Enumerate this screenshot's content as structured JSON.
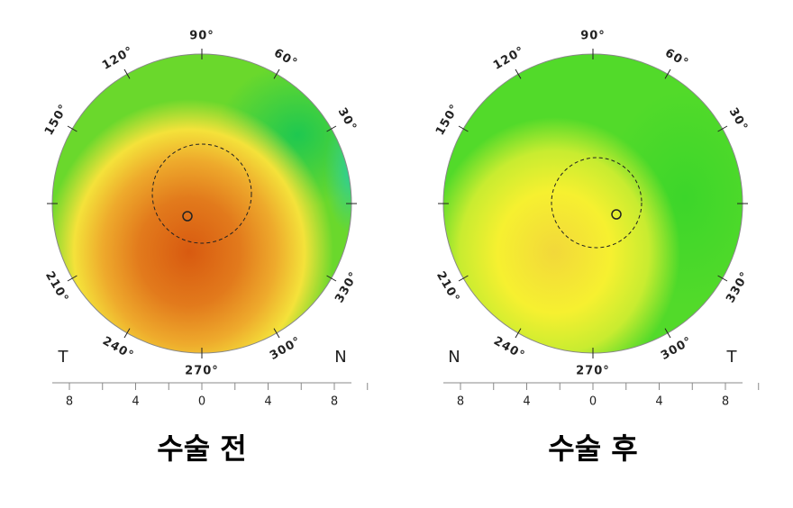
{
  "panels": [
    {
      "angle_labels": [
        "90°",
        "60°",
        "30°",
        "330°",
        "300°",
        "270°",
        "240°",
        "210°",
        "150°",
        "120°"
      ],
      "left_label": "T",
      "right_label": "N",
      "scale_labels": [
        "8",
        "4",
        "0",
        "4",
        "8"
      ],
      "caption": "수술 전"
    },
    {
      "angle_labels": [
        "90°",
        "60°",
        "30°",
        "330°",
        "300°",
        "270°",
        "240°",
        "210°",
        "150°",
        "120°"
      ],
      "left_label": "N",
      "right_label": "T",
      "scale_labels": [
        "8",
        "4",
        "0",
        "4",
        "8"
      ],
      "caption": "수술 후"
    }
  ]
}
